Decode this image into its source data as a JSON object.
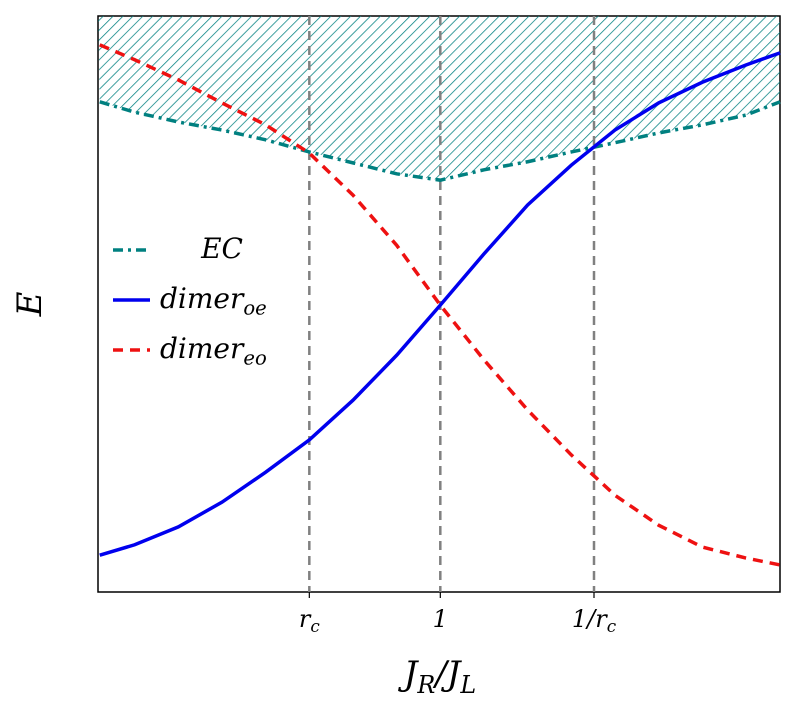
{
  "chart_data": {
    "type": "line",
    "ylabel": "E",
    "xlabel": [
      {
        "text": "J",
        "sub": "R"
      },
      {
        "text": "/J",
        "sub": "L"
      }
    ],
    "x": [
      0.61,
      0.65,
      0.7,
      0.75,
      0.8,
      0.85,
      0.9,
      0.95,
      1.0,
      1.05,
      1.1,
      1.15,
      1.2,
      1.25,
      1.3,
      1.35,
      1.389
    ],
    "xlim": [
      0.608,
      1.389
    ],
    "ylim": [
      0,
      1
    ],
    "xticks": [
      {
        "value": 0.85,
        "label": "r",
        "sub": "c"
      },
      {
        "value": 1,
        "label": "1"
      },
      {
        "value": 1.176,
        "label": "1/r",
        "sub": "c"
      }
    ],
    "series": [
      {
        "name": "EC",
        "color": "#008080",
        "style": "dashdot",
        "hatched": true,
        "values": [
          0.851,
          0.833,
          0.816,
          0.802,
          0.785,
          0.764,
          0.745,
          0.726,
          0.715,
          0.733,
          0.747,
          0.764,
          0.78,
          0.797,
          0.811,
          0.828,
          0.851
        ]
      },
      {
        "name": "dimer",
        "sub": "oe",
        "color": "#0000ee",
        "style": "solid",
        "values": [
          0.064,
          0.082,
          0.113,
          0.156,
          0.208,
          0.264,
          0.333,
          0.411,
          0.498,
          0.587,
          0.672,
          0.741,
          0.802,
          0.849,
          0.885,
          0.915,
          0.936
        ]
      },
      {
        "name": "dimer",
        "sub": "eo",
        "color": "#ee1111",
        "style": "dashed",
        "values": [
          0.95,
          0.924,
          0.889,
          0.849,
          0.811,
          0.762,
          0.689,
          0.602,
          0.498,
          0.403,
          0.316,
          0.238,
          0.168,
          0.116,
          0.078,
          0.059,
          0.047
        ]
      }
    ]
  }
}
